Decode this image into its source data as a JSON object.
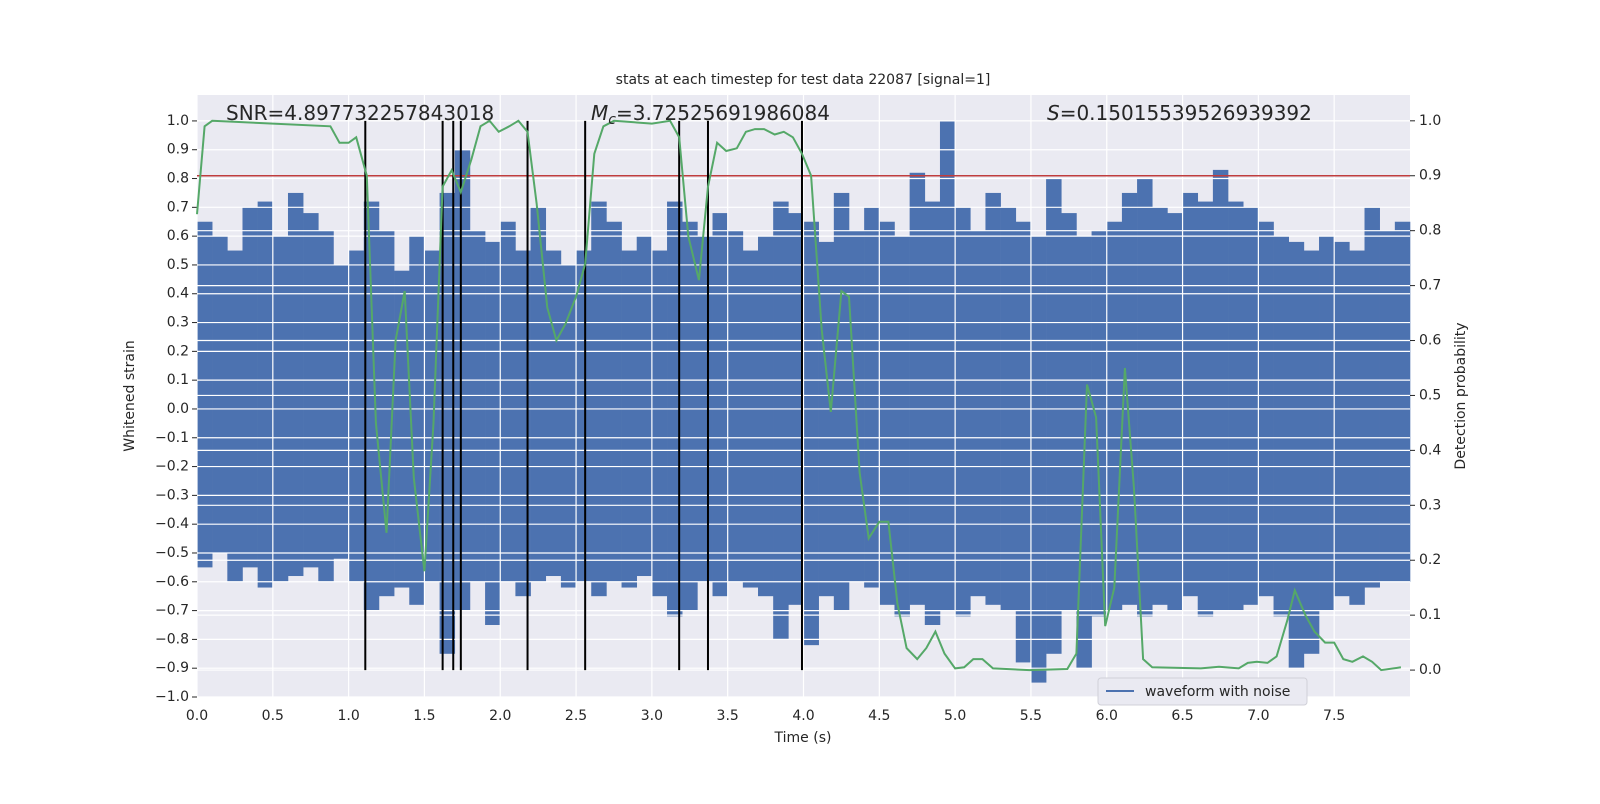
{
  "chart_data": {
    "type": "line",
    "title": "stats at each timestep for test data 22087 [signal=1]",
    "xlabel": "Time (s)",
    "ylabel": "Whitened strain",
    "y2label": "Detection probability",
    "annotations": [
      {
        "text": "SNR=4.897732257843018"
      },
      {
        "symbol": "M",
        "subscript": "c",
        "text": "=3.72525691986084"
      },
      {
        "symbol": "S",
        "text": "=0.15015539526939392"
      }
    ],
    "xlim": [
      0,
      8
    ],
    "ylim": [
      -1.0,
      1.09
    ],
    "y2lim": [
      -0.049,
      1.047
    ],
    "grid": true,
    "legend": "lower right",
    "xticks": [
      {
        "value": 0,
        "label": "0.0"
      },
      {
        "value": 0.5,
        "label": "0.5"
      },
      {
        "value": 1,
        "label": "1.0"
      },
      {
        "value": 1.5,
        "label": "1.5"
      },
      {
        "value": 2,
        "label": "2.0"
      },
      {
        "value": 2.5,
        "label": "2.5"
      },
      {
        "value": 3,
        "label": "3.0"
      },
      {
        "value": 3.5,
        "label": "3.5"
      },
      {
        "value": 4,
        "label": "4.0"
      },
      {
        "value": 4.5,
        "label": "4.5"
      },
      {
        "value": 5,
        "label": "5.0"
      },
      {
        "value": 5.5,
        "label": "5.5"
      },
      {
        "value": 6,
        "label": "6.0"
      },
      {
        "value": 6.5,
        "label": "6.5"
      },
      {
        "value": 7,
        "label": "7.0"
      },
      {
        "value": 7.5,
        "label": "7.5"
      }
    ],
    "yticks": [
      {
        "value": -1,
        "label": "−1.0"
      },
      {
        "value": -0.9,
        "label": "−0.9"
      },
      {
        "value": -0.8,
        "label": "−0.8"
      },
      {
        "value": -0.7,
        "label": "−0.7"
      },
      {
        "value": -0.6,
        "label": "−0.6"
      },
      {
        "value": -0.5,
        "label": "−0.5"
      },
      {
        "value": -0.4,
        "label": "−0.4"
      },
      {
        "value": -0.3,
        "label": "−0.3"
      },
      {
        "value": -0.2,
        "label": "−0.2"
      },
      {
        "value": -0.1,
        "label": "−0.1"
      },
      {
        "value": 0,
        "label": "0.0"
      },
      {
        "value": 0.1,
        "label": "0.1"
      },
      {
        "value": 0.2,
        "label": "0.2"
      },
      {
        "value": 0.3,
        "label": "0.3"
      },
      {
        "value": 0.4,
        "label": "0.4"
      },
      {
        "value": 0.5,
        "label": "0.5"
      },
      {
        "value": 0.6,
        "label": "0.6"
      },
      {
        "value": 0.7,
        "label": "0.7"
      },
      {
        "value": 0.8,
        "label": "0.8"
      },
      {
        "value": 0.9,
        "label": "0.9"
      },
      {
        "value": 1,
        "label": "1.0"
      }
    ],
    "y2ticks": [
      {
        "value": 0,
        "label": "0.0"
      },
      {
        "value": 0.1,
        "label": "0.1"
      },
      {
        "value": 0.2,
        "label": "0.2"
      },
      {
        "value": 0.3,
        "label": "0.3"
      },
      {
        "value": 0.4,
        "label": "0.4"
      },
      {
        "value": 0.5,
        "label": "0.5"
      },
      {
        "value": 0.6,
        "label": "0.6"
      },
      {
        "value": 0.7,
        "label": "0.7"
      },
      {
        "value": 0.8,
        "label": "0.8"
      },
      {
        "value": 0.9,
        "label": "0.9"
      },
      {
        "value": 1,
        "label": "1.0"
      }
    ],
    "waveform": {
      "name": "waveform with noise",
      "color": "#4c72b0",
      "bins": [
        0,
        0.1,
        0.2,
        0.3,
        0.4,
        0.5,
        0.6,
        0.7,
        0.8,
        0.9,
        1,
        1.1,
        1.2,
        1.3,
        1.4,
        1.5,
        1.6,
        1.7,
        1.8,
        1.9,
        2,
        2.1,
        2.2,
        2.3,
        2.4,
        2.5,
        2.6,
        2.7,
        2.8,
        2.9,
        3,
        3.1,
        3.2,
        3.3,
        3.4,
        3.5,
        3.6,
        3.7,
        3.8,
        3.9,
        4,
        4.1,
        4.2,
        4.3,
        4.4,
        4.5,
        4.6,
        4.7,
        4.8,
        4.9,
        5,
        5.1,
        5.2,
        5.3,
        5.4,
        5.5,
        5.6,
        5.7,
        5.8,
        5.9,
        6,
        6.1,
        6.2,
        6.3,
        6.4,
        6.5,
        6.6,
        6.7,
        6.8,
        6.9,
        7,
        7.1,
        7.2,
        7.3,
        7.4,
        7.5,
        7.6,
        7.7,
        7.8,
        7.9,
        8
      ],
      "upper": [
        0.65,
        0.6,
        0.55,
        0.7,
        0.72,
        0.6,
        0.75,
        0.68,
        0.62,
        0.5,
        0.55,
        0.72,
        0.62,
        0.48,
        0.6,
        0.55,
        0.75,
        0.9,
        0.62,
        0.58,
        0.65,
        0.55,
        0.7,
        0.55,
        0.5,
        0.55,
        0.72,
        0.65,
        0.55,
        0.6,
        0.55,
        0.72,
        0.65,
        0.6,
        0.68,
        0.62,
        0.55,
        0.6,
        0.72,
        0.68,
        0.65,
        0.58,
        0.75,
        0.62,
        0.7,
        0.65,
        0.6,
        0.82,
        0.72,
        1.0,
        0.7,
        0.62,
        0.75,
        0.7,
        0.65,
        0.6,
        0.8,
        0.68,
        0.6,
        0.62,
        0.65,
        0.75,
        0.8,
        0.7,
        0.68,
        0.75,
        0.72,
        0.83,
        0.72,
        0.7,
        0.65,
        0.6,
        0.58,
        0.55,
        0.6,
        0.58,
        0.55,
        0.7,
        0.62,
        0.65
      ],
      "lower": [
        -0.55,
        -0.5,
        -0.6,
        -0.55,
        -0.62,
        -0.6,
        -0.58,
        -0.55,
        -0.6,
        -0.52,
        -0.6,
        -0.7,
        -0.65,
        -0.62,
        -0.68,
        -0.6,
        -0.85,
        -0.7,
        -0.6,
        -0.75,
        -0.6,
        -0.65,
        -0.6,
        -0.58,
        -0.62,
        -0.6,
        -0.65,
        -0.6,
        -0.62,
        -0.58,
        -0.65,
        -0.72,
        -0.7,
        -0.6,
        -0.65,
        -0.6,
        -0.62,
        -0.65,
        -0.8,
        -0.68,
        -0.82,
        -0.65,
        -0.7,
        -0.6,
        -0.62,
        -0.68,
        -0.72,
        -0.68,
        -0.75,
        -0.7,
        -0.72,
        -0.65,
        -0.68,
        -0.7,
        -0.88,
        -0.95,
        -0.85,
        -0.7,
        -0.9,
        -0.72,
        -0.7,
        -0.68,
        -0.72,
        -0.68,
        -0.7,
        -0.65,
        -0.72,
        -0.7,
        -0.7,
        -0.68,
        -0.65,
        -0.72,
        -0.9,
        -0.85,
        -0.7,
        -0.65,
        -0.68,
        -0.62,
        -0.6,
        -0.6
      ]
    },
    "probability": {
      "color": "#55a868",
      "axis": "y2",
      "x": [
        0,
        0.05,
        0.1,
        0.88,
        0.94,
        1.0,
        1.05,
        1.12,
        1.18,
        1.25,
        1.31,
        1.37,
        1.43,
        1.5,
        1.56,
        1.62,
        1.68,
        1.74,
        1.81,
        1.87,
        1.93,
        1.99,
        2.06,
        2.12,
        2.18,
        2.24,
        2.31,
        2.37,
        2.43,
        2.5,
        2.56,
        2.62,
        2.68,
        2.75,
        3.0,
        3.12,
        3.18,
        3.24,
        3.31,
        3.37,
        3.43,
        3.49,
        3.56,
        3.62,
        3.68,
        3.74,
        3.81,
        3.87,
        3.93,
        3.99,
        4.05,
        4.12,
        4.18,
        4.25,
        4.3,
        4.37,
        4.43,
        4.5,
        4.56,
        4.62,
        4.68,
        4.75,
        4.81,
        4.87,
        4.93,
        5.0,
        5.06,
        5.12,
        5.18,
        5.25,
        5.49,
        5.74,
        5.8,
        5.87,
        5.93,
        5.99,
        6.05,
        6.12,
        6.18,
        6.24,
        6.3,
        6.62,
        6.74,
        6.87,
        6.93,
        6.99,
        7.06,
        7.12,
        7.19,
        7.24,
        7.31,
        7.37,
        7.44,
        7.5,
        7.56,
        7.62,
        7.69,
        7.75,
        7.81,
        7.94
      ],
      "values": [
        0.83,
        0.99,
        1.0,
        0.99,
        0.96,
        0.96,
        0.97,
        0.9,
        0.45,
        0.25,
        0.6,
        0.69,
        0.35,
        0.18,
        0.45,
        0.88,
        0.91,
        0.87,
        0.93,
        0.99,
        1.0,
        0.98,
        0.99,
        1.0,
        0.98,
        0.85,
        0.66,
        0.6,
        0.63,
        0.68,
        0.74,
        0.94,
        0.99,
        1.0,
        0.995,
        1.0,
        0.97,
        0.79,
        0.71,
        0.88,
        0.96,
        0.945,
        0.95,
        0.98,
        0.985,
        0.985,
        0.975,
        0.98,
        0.97,
        0.94,
        0.9,
        0.62,
        0.47,
        0.69,
        0.68,
        0.36,
        0.24,
        0.27,
        0.27,
        0.12,
        0.04,
        0.02,
        0.04,
        0.07,
        0.03,
        0.003,
        0.005,
        0.02,
        0.02,
        0.003,
        0.0,
        0.002,
        0.03,
        0.52,
        0.46,
        0.08,
        0.15,
        0.55,
        0.33,
        0.02,
        0.005,
        0.003,
        0.006,
        0.003,
        0.013,
        0.015,
        0.013,
        0.025,
        0.09,
        0.145,
        0.1,
        0.07,
        0.05,
        0.05,
        0.02,
        0.015,
        0.025,
        0.015,
        0.0,
        0.005
      ]
    },
    "threshold": {
      "value": 0.9,
      "axis": "y2",
      "color": "#c03d3e"
    },
    "vlines": {
      "x": [
        1.11,
        1.62,
        1.69,
        1.74,
        2.18,
        2.56,
        3.18,
        3.37,
        3.99
      ],
      "span": [
        0,
        1
      ],
      "axis": "y2",
      "color": "#000000"
    }
  }
}
